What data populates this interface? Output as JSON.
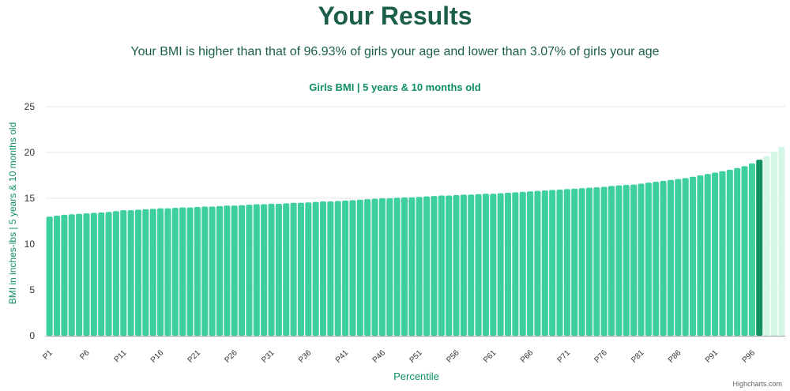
{
  "header": {
    "title": "Your Results",
    "summary": "Your BMI is higher than that of 96.93% of girls your age and lower than 3.07% of girls your age"
  },
  "credits": "Highcharts.com",
  "colors": {
    "bar": "#3dd09c",
    "highlight": "#10935f",
    "after": "#d3f7e6",
    "title": "#0f8f5f",
    "heading": "#1b5e4b",
    "grid": "#e6e6e6",
    "axis_label": "#0f8f5f",
    "tick": "#333333"
  },
  "chart_data": {
    "type": "bar",
    "title": "Girls BMI | 5 years & 10 months old",
    "xlabel": "Percentile",
    "ylabel": "BMI in inches-lbs | 5 years & 10 months old",
    "ylim": [
      0,
      25
    ],
    "yticks": [
      0,
      5,
      10,
      15,
      20,
      25
    ],
    "grid": true,
    "legend": "none",
    "highlight_category": "P97",
    "categories": [
      "P1",
      "P2",
      "P3",
      "P4",
      "P5",
      "P6",
      "P7",
      "P8",
      "P9",
      "P10",
      "P11",
      "P12",
      "P13",
      "P14",
      "P15",
      "P16",
      "P17",
      "P18",
      "P19",
      "P20",
      "P21",
      "P22",
      "P23",
      "P24",
      "P25",
      "P26",
      "P27",
      "P28",
      "P29",
      "P30",
      "P31",
      "P32",
      "P33",
      "P34",
      "P35",
      "P36",
      "P37",
      "P38",
      "P39",
      "P40",
      "P41",
      "P42",
      "P43",
      "P44",
      "P45",
      "P46",
      "P47",
      "P48",
      "P49",
      "P50",
      "P51",
      "P52",
      "P53",
      "P54",
      "P55",
      "P56",
      "P57",
      "P58",
      "P59",
      "P60",
      "P61",
      "P62",
      "P63",
      "P64",
      "P65",
      "P66",
      "P67",
      "P68",
      "P69",
      "P70",
      "P71",
      "P72",
      "P73",
      "P74",
      "P75",
      "P76",
      "P77",
      "P78",
      "P79",
      "P80",
      "P81",
      "P82",
      "P83",
      "P84",
      "P85",
      "P86",
      "P87",
      "P88",
      "P89",
      "P90",
      "P91",
      "P92",
      "P93",
      "P94",
      "P95",
      "P96",
      "P97",
      "P98",
      "P99",
      "P100"
    ],
    "tick_labels": [
      "P1",
      "P6",
      "P11",
      "P16",
      "P21",
      "P26",
      "P31",
      "P36",
      "P41",
      "P46",
      "P51",
      "P56",
      "P61",
      "P66",
      "P71",
      "P76",
      "P81",
      "P86",
      "P91",
      "P96"
    ],
    "values": [
      13.0,
      13.1,
      13.2,
      13.25,
      13.3,
      13.35,
      13.4,
      13.45,
      13.5,
      13.6,
      13.7,
      13.7,
      13.75,
      13.8,
      13.85,
      13.9,
      13.9,
      13.95,
      14.0,
      14.0,
      14.05,
      14.1,
      14.1,
      14.15,
      14.2,
      14.2,
      14.25,
      14.3,
      14.35,
      14.35,
      14.4,
      14.4,
      14.45,
      14.5,
      14.5,
      14.55,
      14.6,
      14.65,
      14.65,
      14.7,
      14.75,
      14.8,
      14.85,
      14.9,
      14.95,
      15.0,
      15.0,
      15.05,
      15.1,
      15.1,
      15.15,
      15.2,
      15.25,
      15.3,
      15.3,
      15.35,
      15.4,
      15.4,
      15.45,
      15.5,
      15.5,
      15.55,
      15.6,
      15.65,
      15.7,
      15.75,
      15.8,
      15.85,
      15.9,
      15.95,
      16.0,
      16.05,
      16.1,
      16.15,
      16.2,
      16.25,
      16.35,
      16.4,
      16.45,
      16.5,
      16.6,
      16.7,
      16.8,
      16.9,
      17.0,
      17.1,
      17.2,
      17.35,
      17.5,
      17.65,
      17.8,
      17.95,
      18.1,
      18.3,
      18.5,
      18.8,
      19.2,
      19.6,
      20.1,
      20.6
    ]
  }
}
